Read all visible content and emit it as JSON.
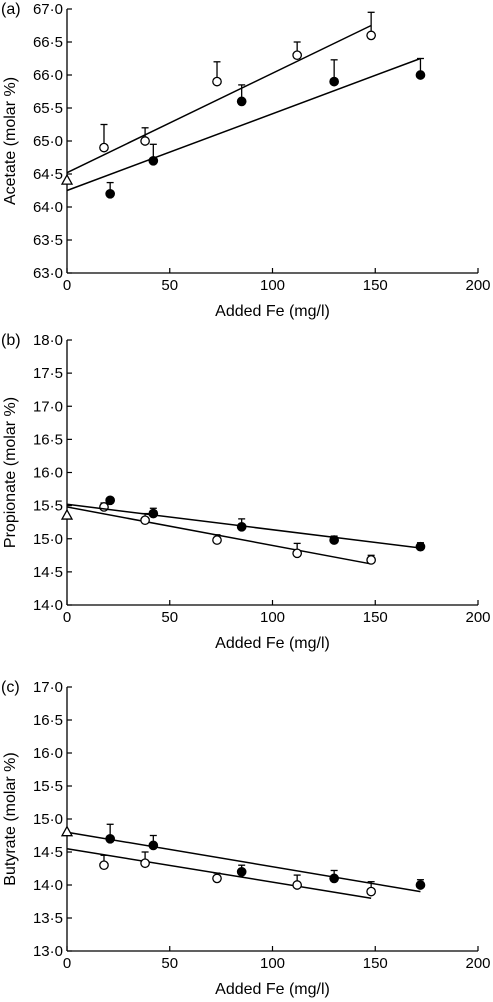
{
  "chart_data": [
    {
      "panel": "(a)",
      "type": "scatter",
      "xlabel": "Added Fe (mg/l)",
      "ylabel": "Acetate (molar %)",
      "xlim": [
        0,
        200
      ],
      "ylim": [
        63.0,
        67.0
      ],
      "xticks": [
        "0",
        "50",
        "100",
        "150",
        "200"
      ],
      "yticks": [
        "63·0",
        "63·5",
        "64·0",
        "64·5",
        "65·0",
        "65·5",
        "66·0",
        "66·5",
        "67·0"
      ],
      "control": {
        "x": 0,
        "y": 64.4,
        "marker": "triangle-open"
      },
      "series": [
        {
          "marker": "circle-open",
          "x": [
            18,
            38,
            73,
            112,
            148
          ],
          "y": [
            64.9,
            65.0,
            65.9,
            66.3,
            66.6
          ],
          "err": [
            0.35,
            0.2,
            0.3,
            0.2,
            0.35
          ],
          "fit": {
            "x": [
              0,
              148
            ],
            "y": [
              64.52,
              66.75
            ]
          }
        },
        {
          "marker": "circle-filled",
          "x": [
            21,
            42,
            85,
            130,
            172
          ],
          "y": [
            64.2,
            64.7,
            65.6,
            65.9,
            66.0
          ],
          "err": [
            0.17,
            0.25,
            0.25,
            0.33,
            0.25
          ],
          "fit": {
            "x": [
              0,
              172
            ],
            "y": [
              64.25,
              66.25
            ]
          }
        }
      ]
    },
    {
      "panel": "(b)",
      "type": "scatter",
      "xlabel": "Added Fe (mg/l)",
      "ylabel": "Propionate (molar %)",
      "xlim": [
        0,
        200
      ],
      "ylim": [
        14.0,
        18.0
      ],
      "xticks": [
        "0",
        "50",
        "100",
        "150",
        "200"
      ],
      "yticks": [
        "14·0",
        "14·5",
        "15·0",
        "15·5",
        "16·0",
        "16·5",
        "17·0",
        "17·5",
        "18·0"
      ],
      "control": {
        "x": 0,
        "y": 15.35,
        "marker": "triangle-open"
      },
      "series": [
        {
          "marker": "circle-open",
          "x": [
            18,
            38,
            73,
            112,
            148
          ],
          "y": [
            15.48,
            15.28,
            14.98,
            14.78,
            14.68
          ],
          "err": [
            0.06,
            0.1,
            0.08,
            0.15,
            0.07
          ],
          "fit": {
            "x": [
              0,
              148
            ],
            "y": [
              15.48,
              14.62
            ]
          }
        },
        {
          "marker": "circle-filled",
          "x": [
            21,
            42,
            85,
            130,
            172
          ],
          "y": [
            15.58,
            15.38,
            15.18,
            14.98,
            14.88
          ],
          "err": [
            0.04,
            0.08,
            0.12,
            0.06,
            0.06
          ],
          "fit": {
            "x": [
              0,
              172
            ],
            "y": [
              15.52,
              14.86
            ]
          }
        }
      ]
    },
    {
      "panel": "(c)",
      "type": "scatter",
      "xlabel": "Added Fe (mg/l)",
      "ylabel": "Butyrate (molar %)",
      "xlim": [
        0,
        200
      ],
      "ylim": [
        13.0,
        17.0
      ],
      "xticks": [
        "0",
        "50",
        "100",
        "150",
        "200"
      ],
      "yticks": [
        "13·0",
        "13·5",
        "14·0",
        "14·5",
        "15·0",
        "15·5",
        "16·0",
        "16·5",
        "17·0"
      ],
      "control": {
        "x": 0,
        "y": 14.8,
        "marker": "triangle-open"
      },
      "series": [
        {
          "marker": "circle-open",
          "x": [
            18,
            38,
            73,
            112,
            148
          ],
          "y": [
            14.3,
            14.33,
            14.1,
            14.0,
            13.9
          ],
          "err": [
            0.15,
            0.17,
            0.08,
            0.15,
            0.15
          ],
          "fit": {
            "x": [
              0,
              148
            ],
            "y": [
              14.55,
              13.8
            ]
          }
        },
        {
          "marker": "circle-filled",
          "x": [
            21,
            42,
            85,
            130,
            172
          ],
          "y": [
            14.7,
            14.6,
            14.2,
            14.1,
            14.0
          ],
          "err": [
            0.22,
            0.15,
            0.1,
            0.12,
            0.08
          ],
          "fit": {
            "x": [
              0,
              172
            ],
            "y": [
              14.8,
              13.9
            ]
          }
        }
      ]
    }
  ]
}
